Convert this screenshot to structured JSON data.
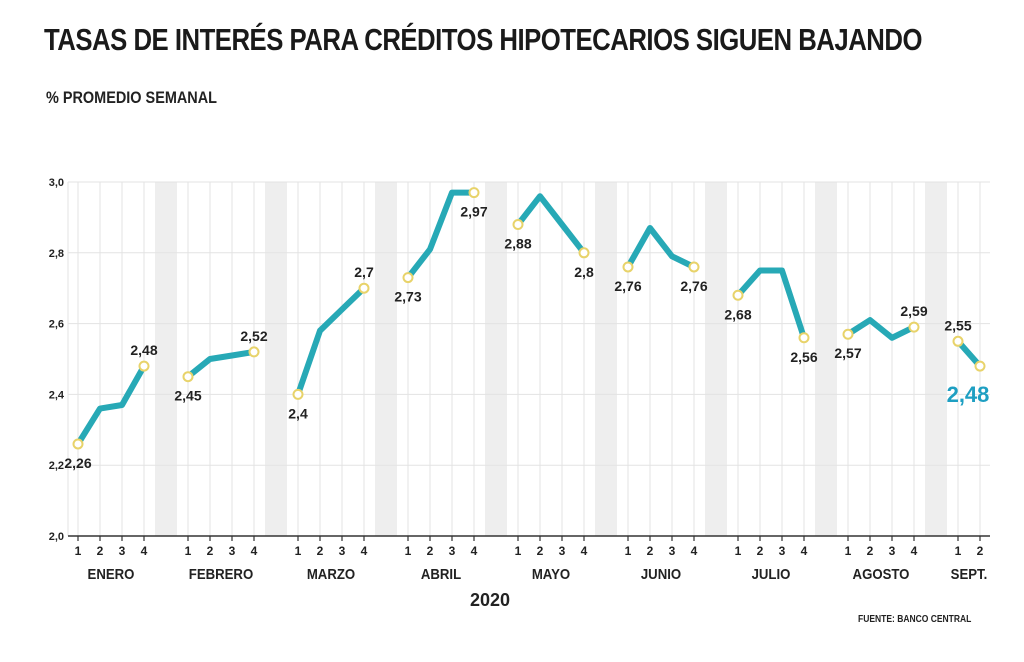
{
  "header": {
    "title": "TASAS DE INTERÉS PARA CRÉDITOS HIPOTECARIOS SIGUEN BAJANDO",
    "subtitle": "% PROMEDIO SEMANAL"
  },
  "footer": {
    "year": "2020",
    "source": "FUENTE: BANCO CENTRAL"
  },
  "colors": {
    "line": "#27a9b6",
    "highlight_label": "#1e9fc2",
    "marker_fill": "#ffffff",
    "marker_stroke": "#e8d36a",
    "shade_band": "#eeeeee",
    "grid": "#e3e3e3",
    "axis": "#333333"
  },
  "chart_data": {
    "type": "line",
    "ylim": [
      2.0,
      3.0
    ],
    "yticks": [
      "2,0",
      "2,2",
      "2,4",
      "2,6",
      "2,8",
      "3,0"
    ],
    "grid": true,
    "months": [
      {
        "name": "ENERO",
        "weeks": [
          "1",
          "2",
          "3",
          "4"
        ],
        "values": [
          2.26,
          2.36,
          2.37,
          2.48
        ],
        "labels": [
          {
            "week": 0,
            "text": "2,26",
            "pos": "below"
          },
          {
            "week": 3,
            "text": "2,48",
            "pos": "above"
          }
        ]
      },
      {
        "name": "FEBRERO",
        "weeks": [
          "1",
          "2",
          "3",
          "4"
        ],
        "values": [
          2.45,
          2.5,
          2.51,
          2.52
        ],
        "labels": [
          {
            "week": 0,
            "text": "2,45",
            "pos": "below"
          },
          {
            "week": 3,
            "text": "2,52",
            "pos": "above"
          }
        ]
      },
      {
        "name": "MARZO",
        "weeks": [
          "1",
          "2",
          "3",
          "4"
        ],
        "values": [
          2.4,
          2.58,
          2.64,
          2.7
        ],
        "labels": [
          {
            "week": 0,
            "text": "2,4",
            "pos": "below"
          },
          {
            "week": 3,
            "text": "2,7",
            "pos": "above"
          }
        ]
      },
      {
        "name": "ABRIL",
        "weeks": [
          "1",
          "2",
          "3",
          "4"
        ],
        "values": [
          2.73,
          2.81,
          2.97,
          2.97
        ],
        "labels": [
          {
            "week": 0,
            "text": "2,73",
            "pos": "below"
          },
          {
            "week": 3,
            "text": "2,97",
            "pos": "below"
          }
        ]
      },
      {
        "name": "MAYO",
        "weeks": [
          "1",
          "2",
          "3",
          "4"
        ],
        "values": [
          2.88,
          2.96,
          2.88,
          2.8
        ],
        "labels": [
          {
            "week": 0,
            "text": "2,88",
            "pos": "below"
          },
          {
            "week": 3,
            "text": "2,8",
            "pos": "below"
          }
        ]
      },
      {
        "name": "JUNIO",
        "weeks": [
          "1",
          "2",
          "3",
          "4"
        ],
        "values": [
          2.76,
          2.87,
          2.79,
          2.76
        ],
        "labels": [
          {
            "week": 0,
            "text": "2,76",
            "pos": "below"
          },
          {
            "week": 3,
            "text": "2,76",
            "pos": "below"
          }
        ]
      },
      {
        "name": "JULIO",
        "weeks": [
          "1",
          "2",
          "3",
          "4"
        ],
        "values": [
          2.68,
          2.75,
          2.75,
          2.56
        ],
        "labels": [
          {
            "week": 0,
            "text": "2,68",
            "pos": "below"
          },
          {
            "week": 3,
            "text": "2,56",
            "pos": "below"
          }
        ]
      },
      {
        "name": "AGOSTO",
        "weeks": [
          "1",
          "2",
          "3",
          "4"
        ],
        "values": [
          2.57,
          2.61,
          2.56,
          2.59
        ],
        "labels": [
          {
            "week": 0,
            "text": "2,57",
            "pos": "below"
          },
          {
            "week": 3,
            "text": "2,59",
            "pos": "above"
          }
        ]
      },
      {
        "name": "SEPT.",
        "weeks": [
          "1",
          "2"
        ],
        "values": [
          2.55,
          2.48
        ],
        "labels": [
          {
            "week": 0,
            "text": "2,55",
            "pos": "above"
          },
          {
            "week": 1,
            "text": "2,48",
            "pos": "below",
            "highlight": true
          }
        ]
      }
    ]
  }
}
